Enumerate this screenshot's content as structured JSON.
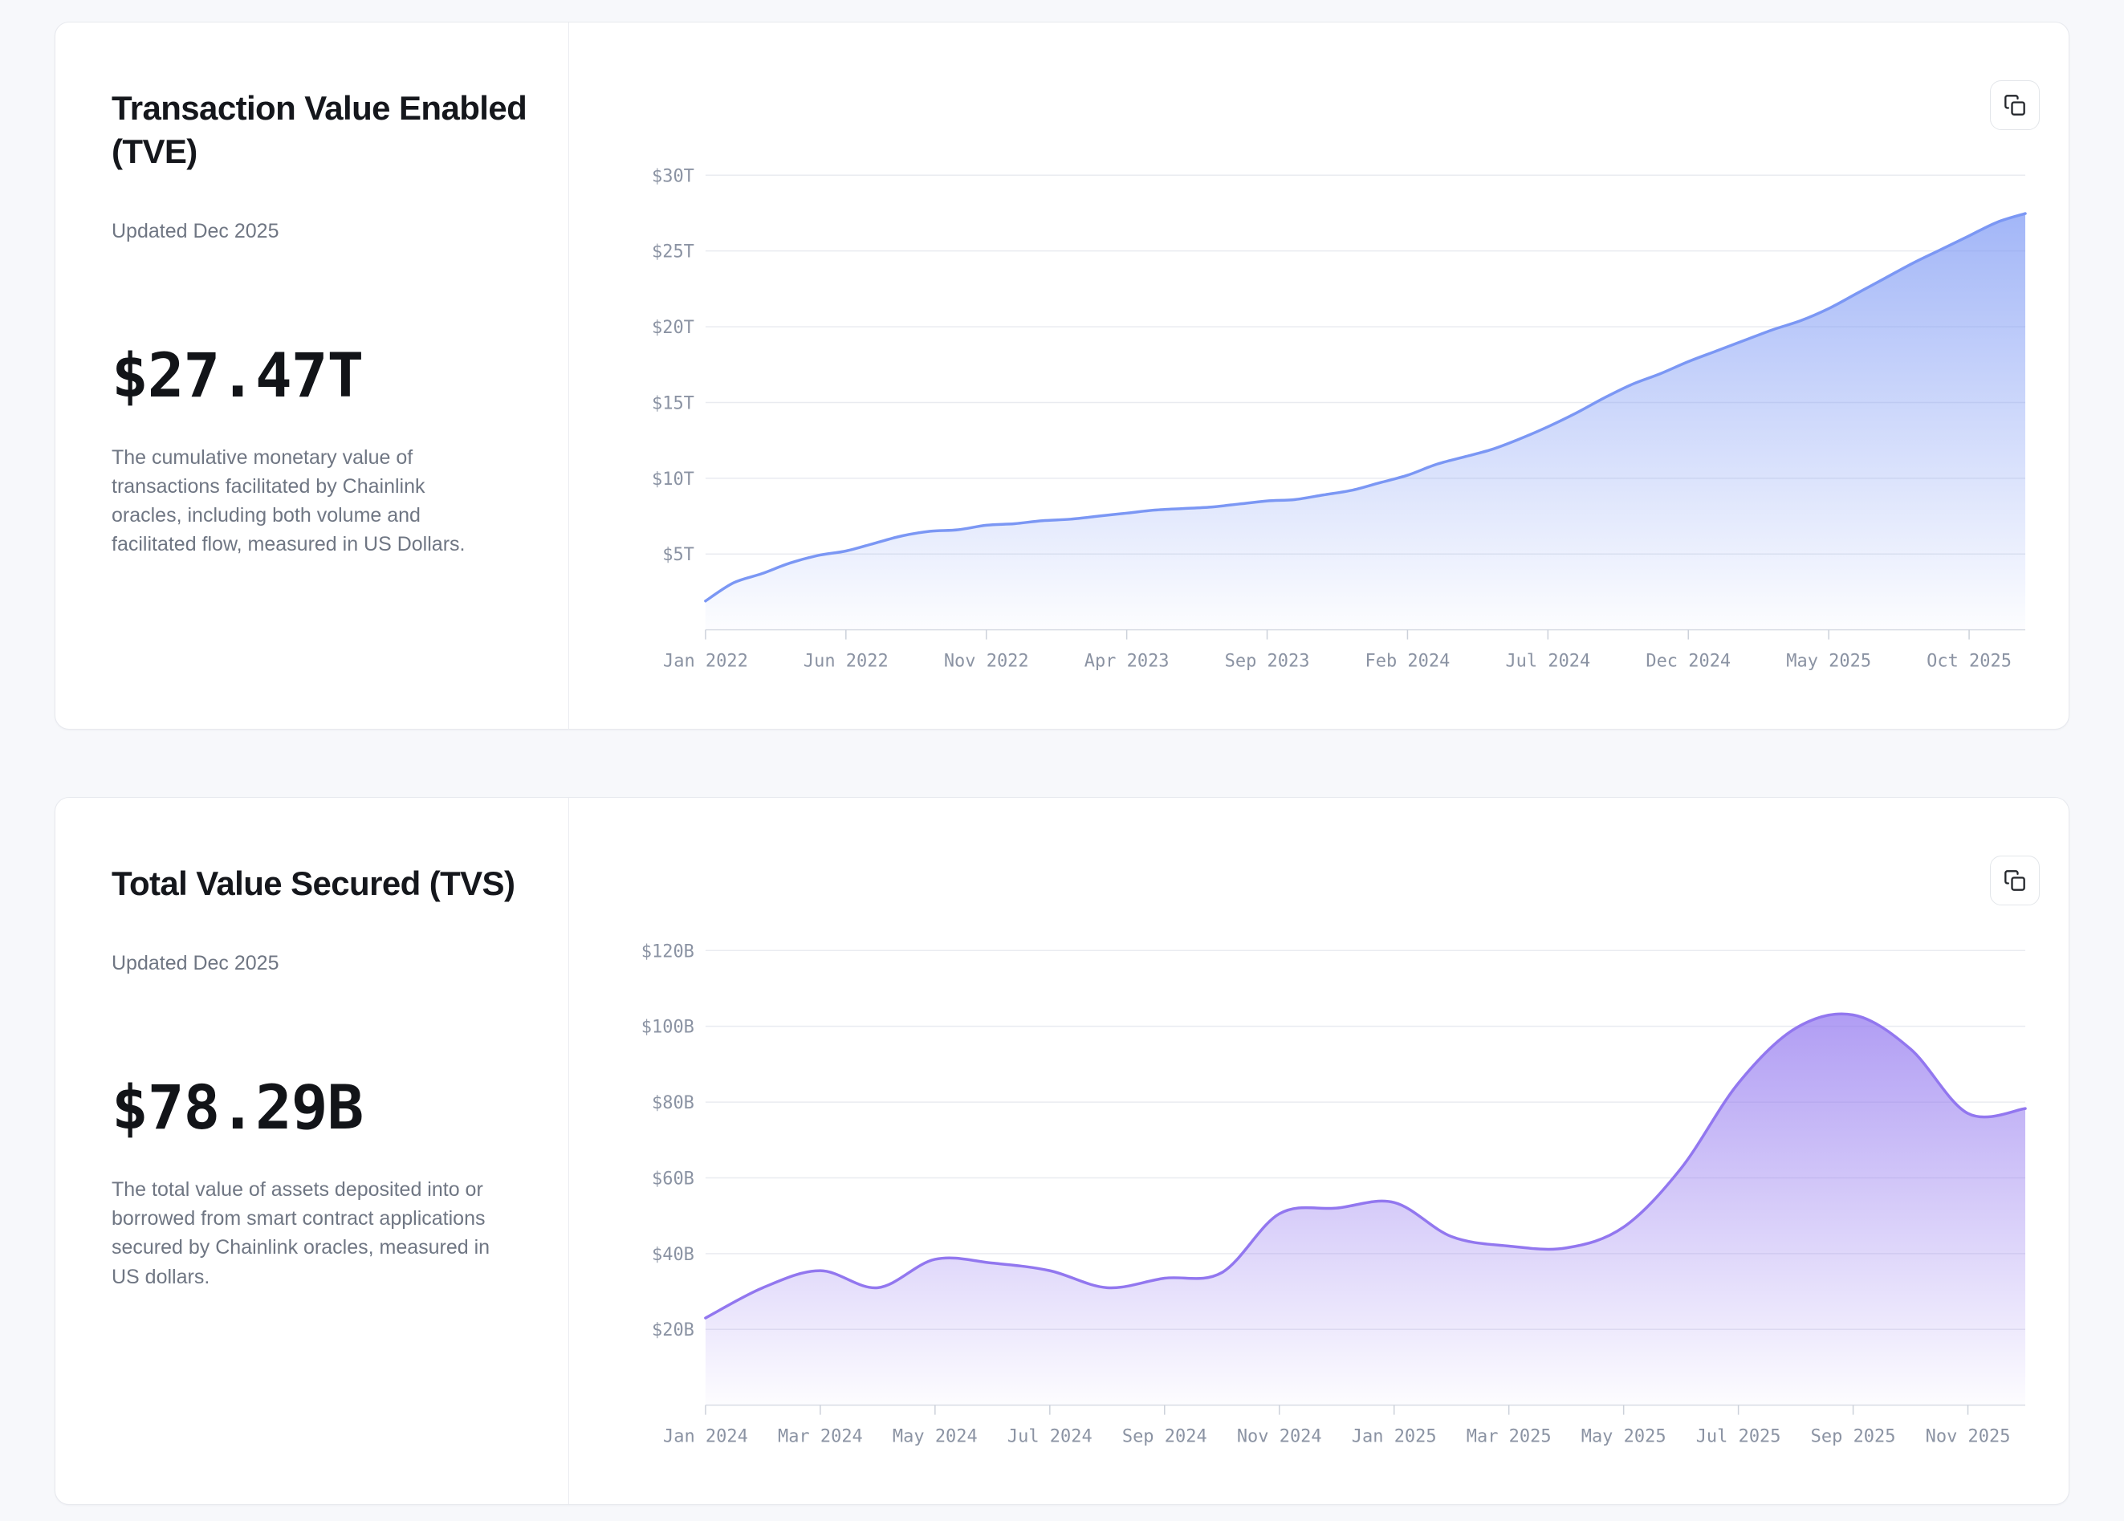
{
  "page": {
    "background": "#f7f8fb"
  },
  "icons": {
    "copy": "copy-icon"
  },
  "cards": [
    {
      "title": "Transaction Value Enabled (TVE)",
      "updated": "Updated Dec 2025",
      "value": "$27.47T",
      "description": "The cumulative monetary value of transactions facilitated by Chainlink oracles, including both volume and facilitated flow, measured in US Dollars."
    },
    {
      "title": "Total Value Secured (TVS)",
      "updated": "Updated Dec 2025",
      "value": "$78.29B",
      "description": "The total value of assets deposited into or borrowed from smart contract applications secured by Chainlink oracles, measured in US dollars."
    }
  ],
  "chart_data": [
    {
      "id": "tve",
      "type": "area",
      "title": "Transaction Value Enabled (TVE), cumulative, $ trillions",
      "unit": "$T",
      "x": [
        "Jan 2022",
        "Feb 2022",
        "Mar 2022",
        "Apr 2022",
        "May 2022",
        "Jun 2022",
        "Jul 2022",
        "Aug 2022",
        "Sep 2022",
        "Oct 2022",
        "Nov 2022",
        "Dec 2022",
        "Jan 2023",
        "Feb 2023",
        "Mar 2023",
        "Apr 2023",
        "May 2023",
        "Jun 2023",
        "Jul 2023",
        "Aug 2023",
        "Sep 2023",
        "Oct 2023",
        "Nov 2023",
        "Dec 2023",
        "Jan 2024",
        "Feb 2024",
        "Mar 2024",
        "Apr 2024",
        "May 2024",
        "Jun 2024",
        "Jul 2024",
        "Aug 2024",
        "Sep 2024",
        "Oct 2024",
        "Nov 2024",
        "Dec 2024",
        "Jan 2025",
        "Feb 2025",
        "Mar 2025",
        "Apr 2025",
        "May 2025",
        "Jun 2025",
        "Jul 2025",
        "Aug 2025",
        "Sep 2025",
        "Oct 2025",
        "Nov 2025",
        "Dec 2025"
      ],
      "values": [
        1.9,
        3.1,
        3.7,
        4.4,
        4.9,
        5.2,
        5.7,
        6.2,
        6.5,
        6.6,
        6.9,
        7.0,
        7.2,
        7.3,
        7.5,
        7.7,
        7.9,
        8.0,
        8.1,
        8.3,
        8.5,
        8.6,
        8.9,
        9.2,
        9.7,
        10.2,
        10.9,
        11.4,
        11.9,
        12.6,
        13.4,
        14.3,
        15.3,
        16.2,
        16.9,
        17.7,
        18.4,
        19.1,
        19.8,
        20.4,
        21.2,
        22.2,
        23.2,
        24.2,
        25.1,
        26.0,
        26.9,
        27.47
      ],
      "ylim": [
        0,
        31.5
      ],
      "yticks": [
        5,
        10,
        15,
        20,
        25,
        30
      ],
      "ytick_labels": [
        "$5T",
        "$10T",
        "$15T",
        "$20T",
        "$25T",
        "$30T"
      ],
      "xtick_every": 5,
      "xtick_labels": [
        "Jan 2022",
        "Jun 2022",
        "Nov 2022",
        "Apr 2023",
        "Sep 2023",
        "Feb 2024",
        "Jul 2024",
        "Dec 2024",
        "May 2025",
        "Oct 2025"
      ],
      "grid": true,
      "legend": "none",
      "line_color": "#7b97f4",
      "fill_top": "rgba(123,151,244,0.70)",
      "fill_bottom": "rgba(123,151,244,0.02)"
    },
    {
      "id": "tvs",
      "type": "area",
      "title": "Total Value Secured (TVS), $ billions",
      "unit": "$B",
      "x": [
        "Jan 2024",
        "Feb 2024",
        "Mar 2024",
        "Apr 2024",
        "May 2024",
        "Jun 2024",
        "Jul 2024",
        "Aug 2024",
        "Sep 2024",
        "Oct 2024",
        "Nov 2024",
        "Dec 2024",
        "Jan 2025",
        "Feb 2025",
        "Mar 2025",
        "Apr 2025",
        "May 2025",
        "Jun 2025",
        "Jul 2025",
        "Aug 2025",
        "Sep 2025",
        "Oct 2025",
        "Nov 2025",
        "Dec 2025"
      ],
      "values": [
        23,
        31,
        35.5,
        31,
        38.5,
        37.5,
        35.5,
        31,
        33.5,
        35,
        50.5,
        52,
        53.5,
        44.5,
        42,
        41.5,
        47,
        62.5,
        85,
        99.5,
        103,
        94,
        77,
        78.29
      ],
      "ylim": [
        0,
        126
      ],
      "yticks": [
        20,
        40,
        60,
        80,
        100,
        120
      ],
      "ytick_labels": [
        "$20B",
        "$40B",
        "$60B",
        "$80B",
        "$100B",
        "$120B"
      ],
      "xtick_every": 2,
      "xtick_labels": [
        "Jan 2024",
        "Mar 2024",
        "May 2024",
        "Jul 2024",
        "Sep 2024",
        "Nov 2024",
        "Jan 2025",
        "Mar 2025",
        "May 2025",
        "Jul 2025",
        "Sep 2025",
        "Nov 2025"
      ],
      "grid": true,
      "legend": "none",
      "line_color": "#9277ef",
      "fill_top": "rgba(146,119,239,0.72)",
      "fill_bottom": "rgba(146,119,239,0.02)"
    }
  ],
  "axis_style": {
    "label_color": "#8b93a3",
    "grid_color": "#e9ebf0",
    "baseline_color": "#d9dde4",
    "tick_color": "#ccd1da"
  }
}
